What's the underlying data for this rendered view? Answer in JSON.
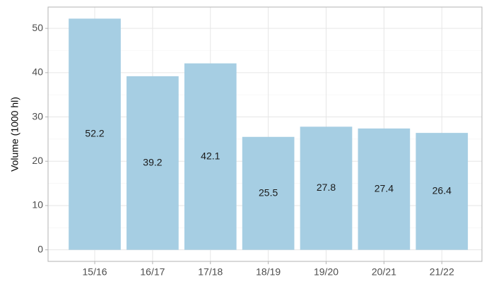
{
  "chart_data": {
    "type": "bar",
    "y_label": "Volume (1000 hl)",
    "categories": [
      "15/16",
      "16/17",
      "17/18",
      "18/19",
      "19/20",
      "20/21",
      "21/22"
    ],
    "values": [
      52.2,
      39.2,
      42.1,
      25.5,
      27.8,
      27.4,
      26.4
    ],
    "color": "#a6cee3",
    "ylim": [
      -2.61,
      54.81
    ],
    "yticks": [
      0,
      10,
      20,
      30,
      40,
      50
    ],
    "grid": true
  }
}
